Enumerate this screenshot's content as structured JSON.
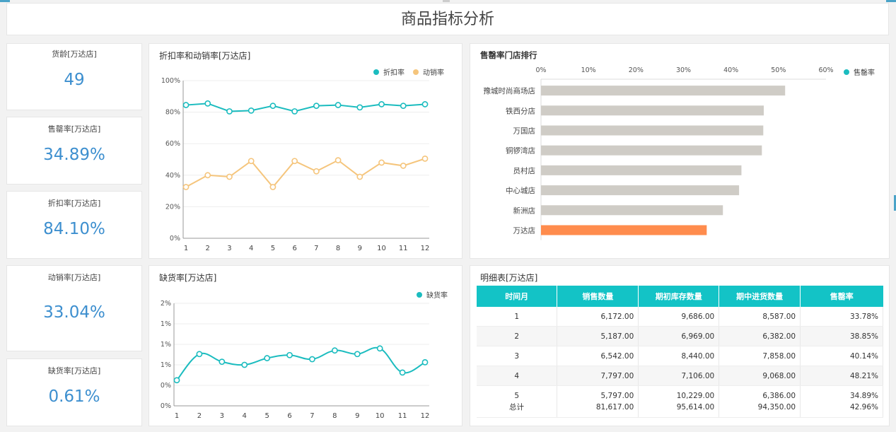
{
  "page_title": "商品指标分析",
  "kpis": [
    {
      "title": "货龄[万达店]",
      "value": "49"
    },
    {
      "title": "售罄率[万达店]",
      "value": "34.89%"
    },
    {
      "title": "折扣率[万达店]",
      "value": "84.10%"
    },
    {
      "title": "动销率[万达店]",
      "value": "33.04%"
    },
    {
      "title": "缺货率[万达店]",
      "value": "0.61%"
    }
  ],
  "line_chart": {
    "title": "折扣率和动销率[万达店]",
    "chart_data": {
      "type": "line",
      "x": [
        "1",
        "2",
        "3",
        "4",
        "5",
        "6",
        "7",
        "8",
        "9",
        "10",
        "11",
        "12"
      ],
      "ylim": [
        0,
        100
      ],
      "yticks": [
        "0%",
        "20%",
        "40%",
        "60%",
        "80%",
        "100%"
      ],
      "series": [
        {
          "name": "折扣率",
          "color": "#1bbcbf",
          "values": [
            84.5,
            85.5,
            80.5,
            81,
            84,
            80.5,
            84,
            84.5,
            83,
            85,
            84,
            85
          ]
        },
        {
          "name": "动销率",
          "color": "#f5c57c",
          "values": [
            32.5,
            40,
            39,
            49,
            32.5,
            49,
            42.5,
            49.5,
            39,
            48,
            46,
            50.5
          ]
        }
      ]
    }
  },
  "stockout_chart": {
    "title": "缺货率[万达店]",
    "chart_data": {
      "type": "line",
      "x": [
        "1",
        "2",
        "3",
        "4",
        "5",
        "6",
        "7",
        "8",
        "9",
        "10",
        "11",
        "12"
      ],
      "ylim": [
        0,
        2
      ],
      "yticks": [
        "0%",
        "0%",
        "1%",
        "1%",
        "1%",
        "2%"
      ],
      "series": [
        {
          "name": "缺货率",
          "color": "#1bbcbf",
          "values": [
            0.5,
            1.01,
            0.86,
            0.8,
            0.93,
            0.99,
            0.91,
            1.08,
            1.01,
            1.12,
            0.65,
            0.85
          ]
        }
      ]
    }
  },
  "bar_chart": {
    "title": "售罄率门店排行",
    "chart_data": {
      "type": "bar",
      "orientation": "horizontal",
      "categories": [
        "豫城时尚商场店",
        "铁西分店",
        "万国店",
        "铜锣湾店",
        "员村店",
        "中心城店",
        "新洲店",
        "万达店"
      ],
      "series": [
        {
          "name": "售罄率",
          "values": [
            51.4,
            46.9,
            46.8,
            46.5,
            42.2,
            41.7,
            38.3,
            34.89
          ]
        }
      ],
      "xlim": [
        0,
        60
      ],
      "xticks": [
        "0%",
        "10%",
        "20%",
        "30%",
        "40%",
        "50%",
        "60%"
      ],
      "bar_color": "#cfccc6",
      "highlight_color": "#ff8c4d",
      "highlight": "万达店"
    }
  },
  "detail_table": {
    "title": "明细表[万达店]",
    "columns": [
      "时间月",
      "销售数量",
      "期初库存数量",
      "期中进货数量",
      "售罄率"
    ],
    "rows": [
      [
        "1",
        "6,172.00",
        "9,686.00",
        "8,587.00",
        "33.78%"
      ],
      [
        "2",
        "5,187.00",
        "6,969.00",
        "6,382.00",
        "38.85%"
      ],
      [
        "3",
        "6,542.00",
        "8,440.00",
        "7,858.00",
        "40.14%"
      ],
      [
        "4",
        "7,797.00",
        "7,106.00",
        "9,068.00",
        "48.21%"
      ]
    ],
    "last_row": [
      "5",
      "5,797.00",
      "10,229.00",
      "6,386.00",
      "34.89%"
    ],
    "total_row": [
      "总计",
      "81,617.00",
      "95,614.00",
      "94,350.00",
      "42.96%"
    ]
  },
  "colors": {
    "accent": "#13c3c6",
    "kpi_value": "#3d8fcf",
    "orange": "#ff8c4d"
  }
}
